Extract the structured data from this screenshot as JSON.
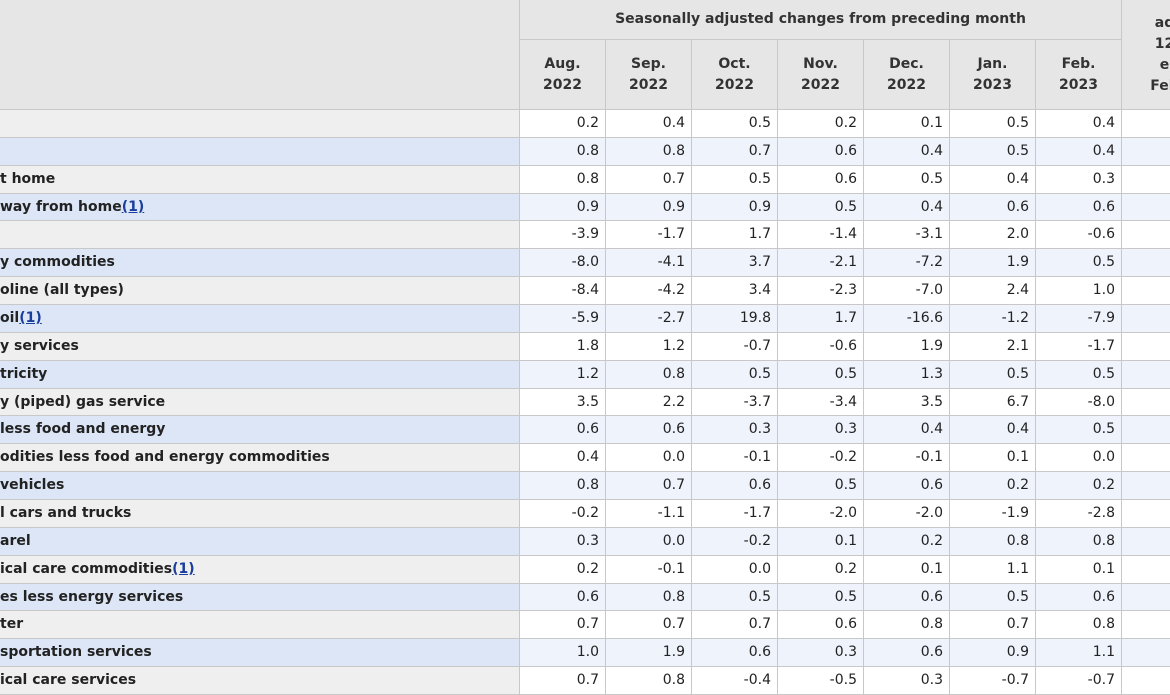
{
  "header": {
    "group_title": "Seasonally adjusted changes from preceding month",
    "columns": [
      [
        "Aug.",
        "2022"
      ],
      [
        "Sep.",
        "2022"
      ],
      [
        "Oct.",
        "2022"
      ],
      [
        "Nov.",
        "2022"
      ],
      [
        "Dec.",
        "2022"
      ],
      [
        "Jan.",
        "2023"
      ],
      [
        "Feb.",
        "2023"
      ]
    ],
    "cut_column": [
      "ad",
      "12",
      "e",
      "Feb"
    ]
  },
  "table": {
    "rows": [
      {
        "label": null,
        "values": [
          "0.2",
          "0.4",
          "0.5",
          "0.2",
          "0.1",
          "0.5",
          "0.4"
        ]
      },
      {
        "label": null,
        "values": [
          "0.8",
          "0.8",
          "0.7",
          "0.6",
          "0.4",
          "0.5",
          "0.4"
        ]
      },
      {
        "label": "t home",
        "values": [
          "0.8",
          "0.7",
          "0.5",
          "0.6",
          "0.5",
          "0.4",
          "0.3"
        ]
      },
      {
        "label": "way from home",
        "footnote": "(1)",
        "values": [
          "0.9",
          "0.9",
          "0.9",
          "0.5",
          "0.4",
          "0.6",
          "0.6"
        ]
      },
      {
        "label": null,
        "values": [
          "-3.9",
          "-1.7",
          "1.7",
          "-1.4",
          "-3.1",
          "2.0",
          "-0.6"
        ]
      },
      {
        "label": "y commodities",
        "values": [
          "-8.0",
          "-4.1",
          "3.7",
          "-2.1",
          "-7.2",
          "1.9",
          "0.5"
        ]
      },
      {
        "label": "oline (all types)",
        "values": [
          "-8.4",
          "-4.2",
          "3.4",
          "-2.3",
          "-7.0",
          "2.4",
          "1.0"
        ]
      },
      {
        "label": "oil",
        "footnote": "(1)",
        "values": [
          "-5.9",
          "-2.7",
          "19.8",
          "1.7",
          "-16.6",
          "-1.2",
          "-7.9"
        ]
      },
      {
        "label": "y services",
        "values": [
          "1.8",
          "1.2",
          "-0.7",
          "-0.6",
          "1.9",
          "2.1",
          "-1.7"
        ]
      },
      {
        "label": "tricity",
        "values": [
          "1.2",
          "0.8",
          "0.5",
          "0.5",
          "1.3",
          "0.5",
          "0.5"
        ]
      },
      {
        "label": "y (piped) gas service",
        "values": [
          "3.5",
          "2.2",
          "-3.7",
          "-3.4",
          "3.5",
          "6.7",
          "-8.0"
        ]
      },
      {
        "label": "less food and energy",
        "values": [
          "0.6",
          "0.6",
          "0.3",
          "0.3",
          "0.4",
          "0.4",
          "0.5"
        ]
      },
      {
        "label": "odities less food and energy commodities",
        "values": [
          "0.4",
          "0.0",
          "-0.1",
          "-0.2",
          "-0.1",
          "0.1",
          "0.0"
        ]
      },
      {
        "label": "vehicles",
        "values": [
          "0.8",
          "0.7",
          "0.6",
          "0.5",
          "0.6",
          "0.2",
          "0.2"
        ]
      },
      {
        "label": "l cars and trucks",
        "values": [
          "-0.2",
          "-1.1",
          "-1.7",
          "-2.0",
          "-2.0",
          "-1.9",
          "-2.8"
        ]
      },
      {
        "label": "arel",
        "values": [
          "0.3",
          "0.0",
          "-0.2",
          "0.1",
          "0.2",
          "0.8",
          "0.8"
        ]
      },
      {
        "label": "ical care commodities",
        "footnote": "(1)",
        "values": [
          "0.2",
          "-0.1",
          "0.0",
          "0.2",
          "0.1",
          "1.1",
          "0.1"
        ]
      },
      {
        "label": "es less energy services",
        "values": [
          "0.6",
          "0.8",
          "0.5",
          "0.5",
          "0.6",
          "0.5",
          "0.6"
        ]
      },
      {
        "label": "ter",
        "values": [
          "0.7",
          "0.7",
          "0.7",
          "0.6",
          "0.8",
          "0.7",
          "0.8"
        ]
      },
      {
        "label": "sportation services",
        "values": [
          "1.0",
          "1.9",
          "0.6",
          "0.3",
          "0.6",
          "0.9",
          "1.1"
        ]
      },
      {
        "label": "ical care services",
        "values": [
          "0.7",
          "0.8",
          "-0.4",
          "-0.5",
          "0.3",
          "-0.7",
          "-0.7"
        ]
      }
    ]
  }
}
